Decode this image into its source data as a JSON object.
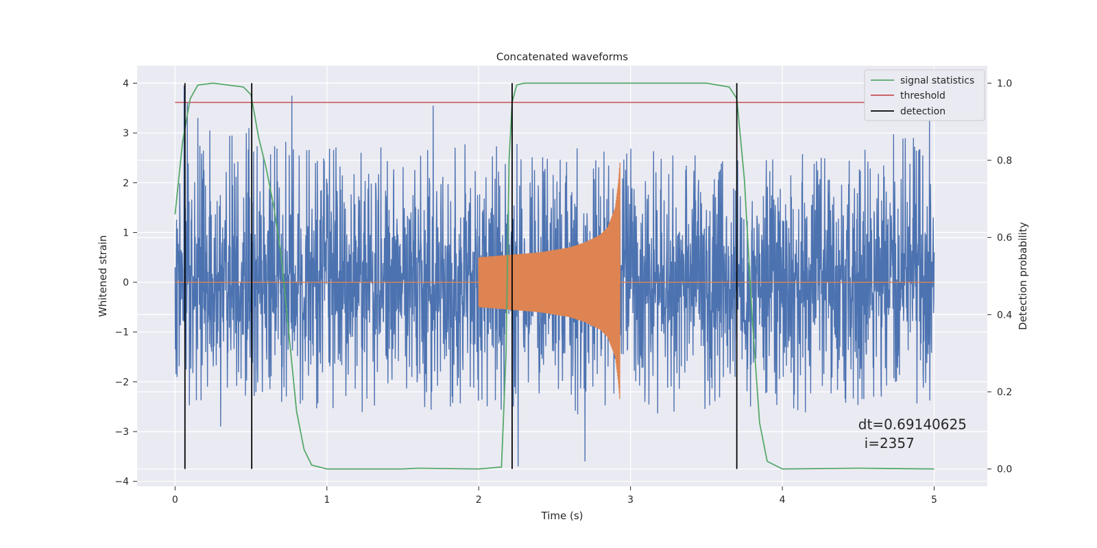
{
  "chart_data": {
    "type": "line",
    "title": "Concatenated waveforms",
    "xlabel": "Time (s)",
    "ylabel_left": "Whitened strain",
    "ylabel_right": "Detection probability",
    "xlim": [
      -0.25,
      5.35
    ],
    "ylim_left": [
      -4.1,
      4.35
    ],
    "ylim_right": [
      -0.045,
      1.045
    ],
    "xticks": [
      0,
      1,
      2,
      3,
      4,
      5
    ],
    "xtick_labels": [
      "0",
      "1",
      "2",
      "3",
      "4",
      "5"
    ],
    "yticks_left": [
      4,
      3,
      2,
      1,
      0,
      -1,
      -2,
      -3,
      -4
    ],
    "ytick_labels_left": [
      "4",
      "3",
      "2",
      "1",
      "0",
      "−1",
      "−2",
      "−3",
      "−4"
    ],
    "yticks_right": [
      1.0,
      0.8,
      0.6,
      0.4,
      0.2,
      0.0
    ],
    "ytick_labels_right": [
      "1.0",
      "0.8",
      "0.6",
      "0.4",
      "0.2",
      "0.0"
    ],
    "grid": true,
    "legend_position": "top-right",
    "legend": [
      {
        "label": "signal statistics",
        "color": "#55a868"
      },
      {
        "label": "threshold",
        "color": "#c44e52"
      },
      {
        "label": "detection",
        "color": "#000000"
      }
    ],
    "series": [
      {
        "name": "strain",
        "color": "#4c72b0",
        "envelope_x": [
          0,
          0.5,
          1,
          1.5,
          2,
          2.5,
          3,
          3.5,
          4,
          4.5,
          5
        ],
        "envelope_upper": [
          3.0,
          3.2,
          2.7,
          2.8,
          2.9,
          2.7,
          2.7,
          2.6,
          2.5,
          2.8,
          3.3
        ],
        "envelope_lower": [
          -2.5,
          -2.4,
          -2.7,
          -2.6,
          -2.5,
          -2.7,
          -2.6,
          -2.7,
          -2.6,
          -2.7,
          -2.4
        ],
        "peaks": [
          {
            "x": 0.06,
            "y": 3.95
          },
          {
            "x": 0.08,
            "y": 3.6
          },
          {
            "x": 0.15,
            "y": 3.3
          },
          {
            "x": 0.47,
            "y": 3.0
          },
          {
            "x": 0.77,
            "y": 3.75
          },
          {
            "x": 1.7,
            "y": 3.55
          },
          {
            "x": 2.26,
            "y": -3.7
          },
          {
            "x": 0.3,
            "y": -2.9
          },
          {
            "x": 2.7,
            "y": -3.6
          },
          {
            "x": 4.97,
            "y": 3.3
          }
        ]
      },
      {
        "name": "template",
        "color": "#dd8452",
        "chirp_x": [
          2.0,
          2.2,
          2.4,
          2.6,
          2.7,
          2.8,
          2.85,
          2.9,
          2.92,
          2.93
        ],
        "chirp_amplitude": [
          0.5,
          0.55,
          0.6,
          0.7,
          0.8,
          0.95,
          1.1,
          1.5,
          2.0,
          2.4
        ],
        "flat_value": 0
      },
      {
        "name": "signal statistics",
        "color": "#55a868",
        "axis": "right",
        "x": [
          0.0,
          0.05,
          0.1,
          0.15,
          0.25,
          0.45,
          0.5,
          0.55,
          0.6,
          0.65,
          0.7,
          0.75,
          0.8,
          0.85,
          0.9,
          1.0,
          1.5,
          1.6,
          2.0,
          2.15,
          2.18,
          2.2,
          2.22,
          2.25,
          2.3,
          2.5,
          3.0,
          3.5,
          3.65,
          3.7,
          3.75,
          3.8,
          3.85,
          3.9,
          4.0,
          4.5,
          5.0
        ],
        "y": [
          0.66,
          0.85,
          0.96,
          0.995,
          1.0,
          0.99,
          0.97,
          0.86,
          0.78,
          0.68,
          0.55,
          0.35,
          0.15,
          0.05,
          0.01,
          0.0,
          0.0,
          0.002,
          0.0,
          0.005,
          0.3,
          0.8,
          0.95,
          0.995,
          1.0,
          1.0,
          1.0,
          1.0,
          0.99,
          0.96,
          0.75,
          0.4,
          0.12,
          0.02,
          0.0,
          0.002,
          0.0
        ]
      },
      {
        "name": "threshold",
        "color": "#c44e52",
        "axis": "right",
        "x": [
          0,
          5
        ],
        "y": [
          0.95,
          0.95
        ]
      }
    ],
    "detections": {
      "color": "#000000",
      "x": [
        0.065,
        0.505,
        2.22,
        3.7
      ],
      "range": [
        0.0,
        1.0
      ]
    },
    "annotations": [
      {
        "text": "dt=0.69140625",
        "x": 4.5,
        "y": -2.95
      },
      {
        "text": "i=2357",
        "x": 4.54,
        "y": -3.33
      }
    ]
  }
}
